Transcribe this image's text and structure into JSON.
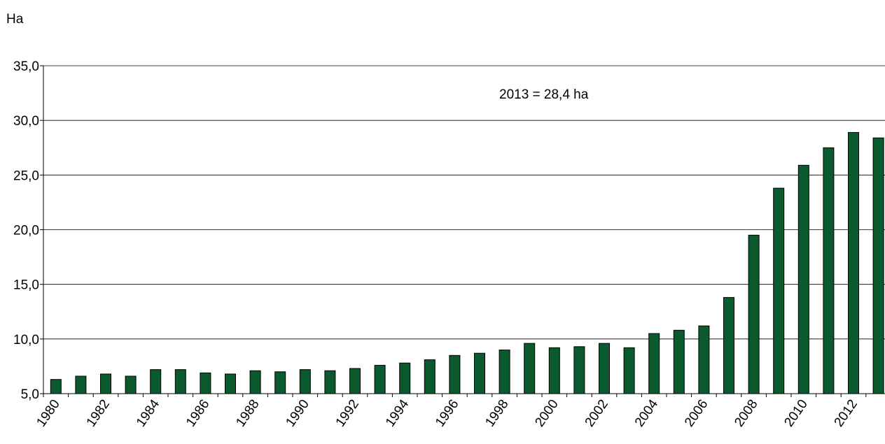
{
  "chart_data": {
    "type": "bar",
    "ylabel": "Ha",
    "annotation": "2013 = 28,4 ha",
    "ylim": [
      5,
      35
    ],
    "yticks": [
      5,
      10,
      15,
      20,
      25,
      30,
      35
    ],
    "ytick_labels": [
      "5,0",
      "10,0",
      "15,0",
      "20,0",
      "25,0",
      "30,0",
      "35,0"
    ],
    "grid": "horizontal",
    "bar_color": "#0b5a2e",
    "categories": [
      "1980",
      "1981",
      "1982",
      "1983",
      "1984",
      "1985",
      "1986",
      "1987",
      "1988",
      "1989",
      "1990",
      "1991",
      "1992",
      "1993",
      "1994",
      "1995",
      "1996",
      "1997",
      "1998",
      "1999",
      "2000",
      "2001",
      "2002",
      "2003",
      "2004",
      "2005",
      "2006",
      "2007",
      "2008",
      "2009",
      "2010",
      "2011",
      "2012",
      "2013"
    ],
    "values": [
      6.3,
      6.6,
      6.8,
      6.6,
      7.2,
      7.2,
      6.9,
      6.8,
      7.1,
      7.0,
      7.2,
      7.1,
      7.3,
      7.6,
      7.8,
      8.1,
      8.5,
      8.7,
      9.0,
      9.6,
      9.2,
      9.3,
      9.6,
      9.2,
      10.5,
      10.8,
      11.2,
      13.8,
      19.5,
      23.8,
      25.9,
      27.5,
      28.9,
      28.4
    ],
    "xtick_labels": [
      "1980",
      "1982",
      "1984",
      "1986",
      "1988",
      "1990",
      "1992",
      "1994",
      "1996",
      "1998",
      "2000",
      "2002",
      "2004",
      "2006",
      "2008",
      "2010",
      "2012"
    ]
  }
}
